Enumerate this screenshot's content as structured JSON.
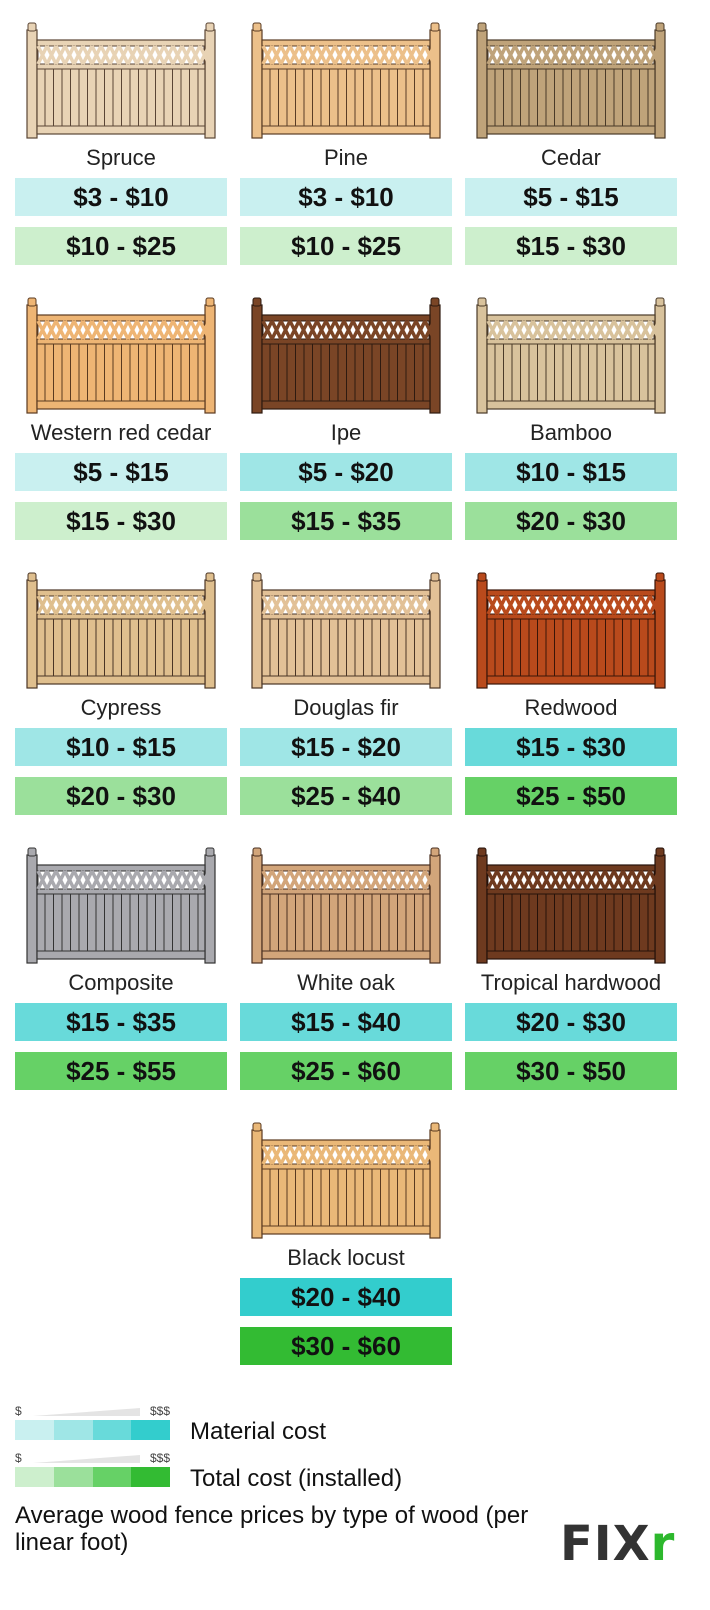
{
  "level_colors": {
    "material": [
      "#c9f0f0",
      "#9fe6e6",
      "#68dada",
      "#33cdcd"
    ],
    "total": [
      "#cdefcd",
      "#9be09b",
      "#66d166",
      "#33bb33"
    ]
  },
  "woods": [
    {
      "name": "Spruce",
      "material": "$3 - $10",
      "total": "$10 - $25",
      "material_level": 1,
      "total_level": 1,
      "wood_color": "#e8d3b5",
      "line_color": "#5a4535"
    },
    {
      "name": "Pine",
      "material": "$3 - $10",
      "total": "$10 - $25",
      "material_level": 1,
      "total_level": 1,
      "wood_color": "#ecc08a",
      "line_color": "#5a3d25"
    },
    {
      "name": "Cedar",
      "material": "$5 - $15",
      "total": "$15 - $30",
      "material_level": 1,
      "total_level": 1,
      "wood_color": "#bfa37a",
      "line_color": "#4a3a28"
    },
    {
      "name": "Western red cedar",
      "material": "$5 - $15",
      "total": "$15 - $30",
      "material_level": 1,
      "total_level": 1,
      "wood_color": "#eeb574",
      "line_color": "#5a3a20"
    },
    {
      "name": "Ipe",
      "material": "$5 - $20",
      "total": "$15 - $35",
      "material_level": 2,
      "total_level": 2,
      "wood_color": "#7a4526",
      "line_color": "#2e1a10"
    },
    {
      "name": "Bamboo",
      "material": "$10 - $15",
      "total": "$20 - $30",
      "material_level": 2,
      "total_level": 2,
      "wood_color": "#d8c29c",
      "line_color": "#4a3a28"
    },
    {
      "name": "Cypress",
      "material": "$10 - $15",
      "total": "$20 - $30",
      "material_level": 2,
      "total_level": 2,
      "wood_color": "#dfbf8e",
      "line_color": "#4a3525"
    },
    {
      "name": "Douglas fir",
      "material": "$15 - $20",
      "total": "$25 - $40",
      "material_level": 2,
      "total_level": 2,
      "wood_color": "#e2c197",
      "line_color": "#4a3525"
    },
    {
      "name": "Redwood",
      "material": "$15 - $30",
      "total": "$25 - $50",
      "material_level": 3,
      "total_level": 3,
      "wood_color": "#b94a1c",
      "line_color": "#3a1508"
    },
    {
      "name": "Composite",
      "material": "$15 - $35",
      "total": "$25 - $55",
      "material_level": 3,
      "total_level": 3,
      "wood_color": "#a9a9ae",
      "line_color": "#333"
    },
    {
      "name": "White oak",
      "material": "$15 - $40",
      "total": "$25 - $60",
      "material_level": 3,
      "total_level": 3,
      "wood_color": "#d2a57a",
      "line_color": "#4a3020"
    },
    {
      "name": "Tropical hardwood",
      "material": "$20 - $30",
      "total": "$30 - $50",
      "material_level": 3,
      "total_level": 3,
      "wood_color": "#6e3a1f",
      "line_color": "#25120a"
    },
    {
      "name": "Black locust",
      "material": "$20 - $40",
      "total": "$30 - $60",
      "material_level": 4,
      "total_level": 4,
      "wood_color": "#eab878",
      "line_color": "#5a3a20"
    }
  ],
  "legend": {
    "low": "$",
    "high": "$$$",
    "material_label": "Material cost",
    "total_label": "Total cost (installed)"
  },
  "caption": "Average wood fence prices by type of wood (per linear foot)",
  "logo_text": "FIXr"
}
